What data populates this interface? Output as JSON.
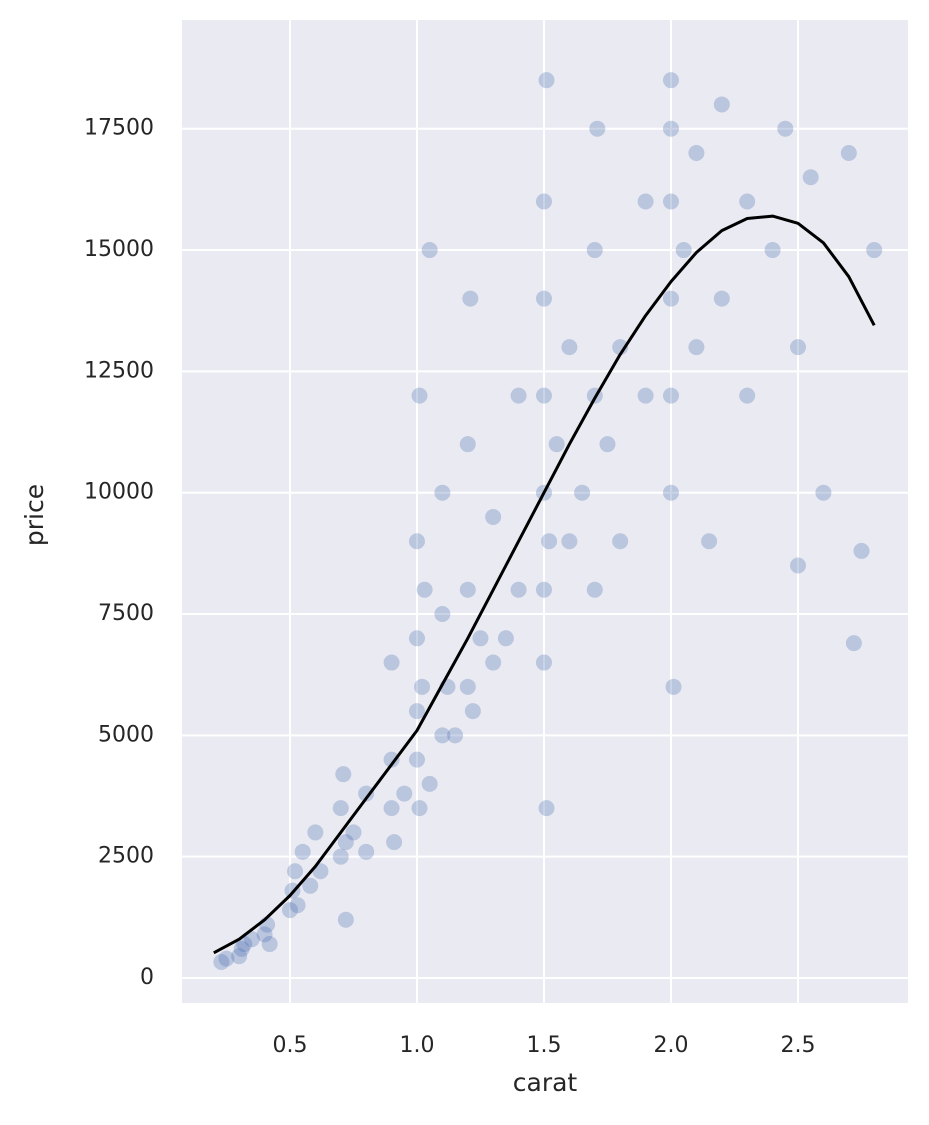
{
  "chart_data": {
    "type": "scatter",
    "x_label": "carat",
    "y_label": "price",
    "xlim": [
      0.075,
      2.933
    ],
    "ylim": [
      -515,
      19740
    ],
    "xticks": [
      0.5,
      {
        "value": 1,
        "label": "1.0"
      },
      1.5,
      {
        "value": 2,
        "label": "2.0"
      },
      2.5
    ],
    "yticks": [
      0,
      2500,
      5000,
      7500,
      10000,
      12500,
      15000,
      17500
    ],
    "grid": true,
    "series": [
      {
        "color": "#4c72b0",
        "x": [
          0.23,
          0.25,
          0.3,
          0.31,
          0.32,
          0.35,
          0.4,
          0.41,
          0.42,
          0.5,
          0.51,
          0.52,
          0.53,
          0.55,
          0.58,
          0.6,
          0.62,
          0.7,
          0.7,
          0.71,
          0.72,
          0.72,
          0.75,
          0.8,
          0.8,
          0.9,
          0.9,
          0.9,
          0.91,
          0.95,
          1.0,
          1.0,
          1.0,
          1.0,
          1.01,
          1.01,
          1.02,
          1.03,
          1.05,
          1.05,
          1.1,
          1.1,
          1.1,
          1.12,
          1.15,
          1.2,
          1.2,
          1.2,
          1.21,
          1.22,
          1.25,
          1.3,
          1.3,
          1.35,
          1.4,
          1.4,
          1.5,
          1.5,
          1.5,
          1.5,
          1.5,
          1.5,
          1.51,
          1.51,
          1.52,
          1.55,
          1.6,
          1.6,
          1.65,
          1.7,
          1.7,
          1.7,
          1.71,
          1.75,
          1.8,
          1.8,
          1.9,
          1.9,
          2.0,
          2.0,
          2.0,
          2.0,
          2.0,
          2.0,
          2.01,
          2.05,
          2.1,
          2.1,
          2.15,
          2.2,
          2.2,
          2.3,
          2.3,
          2.4,
          2.45,
          2.5,
          2.5,
          2.55,
          2.6,
          2.7,
          2.75,
          2.8,
          2.72
        ],
        "values": [
          330,
          400,
          450,
          600,
          700,
          800,
          900,
          1100,
          700,
          1400,
          1800,
          2200,
          1500,
          2600,
          1900,
          3000,
          2200,
          2500,
          3500,
          4200,
          2800,
          1200,
          3000,
          3800,
          2600,
          3500,
          4500,
          6500,
          2800,
          3800,
          4500,
          5500,
          7000,
          9000,
          12000,
          3500,
          6000,
          8000,
          4000,
          15000,
          5000,
          7500,
          10000,
          6000,
          5000,
          6000,
          8000,
          11000,
          14000,
          5500,
          7000,
          6500,
          9500,
          7000,
          8000,
          12000,
          6500,
          8000,
          10000,
          12000,
          14000,
          16000,
          18500,
          3500,
          9000,
          11000,
          9000,
          13000,
          10000,
          8000,
          12000,
          15000,
          17500,
          11000,
          13000,
          9000,
          12000,
          16000,
          10000,
          12000,
          14000,
          16000,
          17500,
          18500,
          6000,
          15000,
          13000,
          17000,
          9000,
          14000,
          18000,
          12000,
          16000,
          15000,
          17500,
          13000,
          8500,
          16500,
          10000,
          17000,
          8800,
          15000,
          6900
        ]
      },
      {
        "type": "line",
        "color": "#000000",
        "x": [
          0.2,
          0.3,
          0.4,
          0.5,
          0.6,
          0.7,
          0.8,
          0.9,
          1.0,
          1.1,
          1.2,
          1.3,
          1.4,
          1.5,
          1.6,
          1.7,
          1.8,
          1.9,
          2.0,
          2.1,
          2.2,
          2.3,
          2.4,
          2.5,
          2.6,
          2.7,
          2.8
        ],
        "values": [
          520,
          800,
          1200,
          1700,
          2300,
          3000,
          3700,
          4400,
          5100,
          6050,
          7000,
          8000,
          9000,
          10000,
          11000,
          11950,
          12850,
          13650,
          14350,
          14950,
          15400,
          15650,
          15700,
          15550,
          15150,
          14450,
          13450
        ]
      }
    ]
  }
}
